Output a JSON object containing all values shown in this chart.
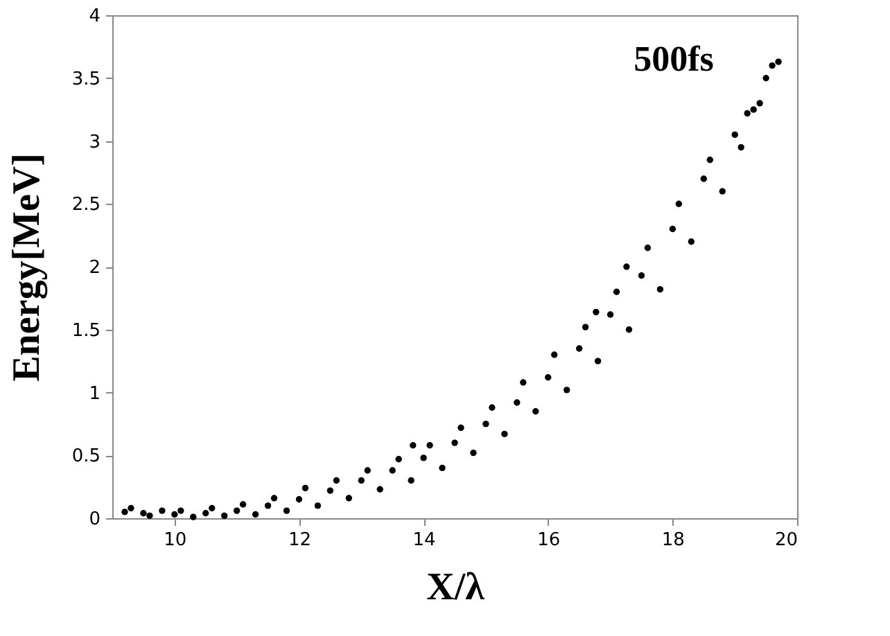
{
  "chart_data": {
    "type": "scatter",
    "xlabel": "X/λ",
    "ylabel": "Energy[MeV]",
    "annotations": [
      "500fs"
    ],
    "xlim": [
      9,
      20
    ],
    "ylim": [
      0,
      4
    ],
    "xticks": [
      10,
      12,
      14,
      16,
      18,
      20
    ],
    "yticks": [
      0,
      0.5,
      1,
      1.5,
      2,
      2.5,
      3,
      3.5,
      4
    ],
    "grid": false,
    "legend": false,
    "marker": "circle",
    "series": [
      {
        "color": "#000000",
        "x": [
          9.2,
          9.3,
          9.5,
          9.6,
          9.8,
          10,
          10.1,
          10.3,
          10.5,
          10.6,
          10.8,
          11,
          11.1,
          11.3,
          11.5,
          11.6,
          11.8,
          12,
          12.1,
          12.3,
          12.5,
          12.6,
          12.8,
          13,
          13.1,
          13.3,
          13.5,
          13.6,
          13.8,
          13.83,
          14,
          14.1,
          14.3,
          14.5,
          14.6,
          14.8,
          15,
          15.1,
          15.3,
          15.5,
          15.6,
          15.8,
          16,
          16.1,
          16.3,
          16.5,
          16.6,
          16.77,
          16.8,
          17,
          17.1,
          17.26,
          17.3,
          17.5,
          17.6,
          17.8,
          18,
          18.1,
          18.3,
          18.5,
          18.6,
          18.8,
          19,
          19.1,
          19.2,
          19.3,
          19.4,
          19.5,
          19.6,
          19.7
        ],
        "values": [
          0.05,
          0.08,
          0.04,
          0.02,
          0.06,
          0.03,
          0.06,
          0.01,
          0.04,
          0.08,
          0.02,
          0.06,
          0.11,
          0.03,
          0.1,
          0.16,
          0.06,
          0.15,
          0.24,
          0.1,
          0.22,
          0.3,
          0.16,
          0.3,
          0.38,
          0.23,
          0.38,
          0.47,
          0.3,
          0.58,
          0.48,
          0.58,
          0.4,
          0.6,
          0.72,
          0.52,
          0.75,
          0.88,
          0.67,
          0.92,
          1.08,
          0.85,
          1.12,
          1.3,
          1.02,
          1.35,
          1.52,
          1.64,
          1.25,
          1.62,
          1.8,
          2.0,
          1.5,
          1.93,
          2.15,
          1.82,
          2.3,
          2.5,
          2.2,
          2.7,
          2.85,
          2.6,
          3.05,
          2.95,
          3.22,
          3.25,
          3.3,
          3.5,
          3.6,
          3.63
        ]
      }
    ]
  }
}
